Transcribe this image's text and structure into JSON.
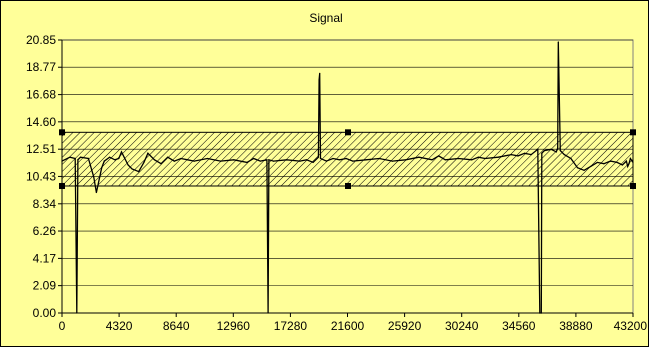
{
  "chart_data": {
    "type": "line",
    "title": "Signal",
    "xlabel": "",
    "ylabel": "",
    "xlim": [
      0,
      43200
    ],
    "ylim": [
      0,
      20.85
    ],
    "x_ticks": [
      "0",
      "4320",
      "8640",
      "12960",
      "17280",
      "21600",
      "25920",
      "30240",
      "34560",
      "38880",
      "43200"
    ],
    "y_ticks": [
      "0.00",
      "2.09",
      "4.17",
      "6.26",
      "8.34",
      "10.43",
      "12.51",
      "14.60",
      "16.68",
      "18.77",
      "20.85"
    ],
    "grid": "horizontal",
    "band": {
      "low": 9.7,
      "high": 13.8,
      "pattern": "diagonal-hatch"
    },
    "series": [
      {
        "color": "#000000",
        "x": [
          0,
          600,
          1000,
          1120,
          1200,
          1400,
          2000,
          2400,
          2600,
          3000,
          3200,
          3600,
          4000,
          4300,
          4500,
          5000,
          5300,
          5800,
          6200,
          6500,
          7000,
          7500,
          8000,
          8500,
          9000,
          9500,
          10000,
          11000,
          12000,
          13000,
          14000,
          14500,
          15000,
          15500,
          15590,
          15650,
          16000,
          17000,
          18000,
          18500,
          19000,
          19400,
          19450,
          19500,
          19560,
          20000,
          20500,
          21000,
          21500,
          22000,
          23000,
          24000,
          25000,
          26000,
          27000,
          28000,
          28500,
          29000,
          30000,
          31000,
          31500,
          32000,
          33000,
          34000,
          34500,
          35000,
          35500,
          36000,
          36150,
          36260,
          36300,
          36500,
          37000,
          37400,
          37500,
          37550,
          37700,
          38000,
          38500,
          39000,
          39500,
          40000,
          40500,
          41000,
          41500,
          42000,
          42400,
          42700,
          42800,
          42900,
          43000,
          43200
        ],
        "y": [
          11.6,
          11.9,
          11.8,
          0.0,
          11.7,
          11.9,
          11.8,
          10.4,
          9.2,
          11.1,
          11.6,
          11.9,
          11.7,
          11.8,
          12.3,
          11.3,
          11.0,
          10.8,
          11.5,
          12.2,
          11.7,
          11.4,
          11.9,
          11.6,
          11.8,
          11.7,
          11.6,
          11.8,
          11.6,
          11.7,
          11.5,
          11.8,
          11.6,
          11.7,
          0.0,
          11.7,
          11.6,
          11.7,
          11.6,
          11.7,
          11.5,
          11.9,
          17.8,
          18.3,
          11.8,
          11.6,
          11.8,
          11.7,
          11.8,
          11.6,
          11.7,
          11.8,
          11.6,
          11.7,
          11.9,
          11.7,
          12.0,
          11.7,
          11.8,
          11.7,
          11.9,
          11.8,
          11.9,
          12.1,
          12.0,
          12.2,
          12.1,
          12.5,
          0.0,
          0.0,
          12.2,
          12.4,
          12.5,
          12.3,
          12.6,
          20.7,
          12.4,
          12.1,
          11.8,
          11.1,
          10.9,
          11.2,
          11.5,
          11.4,
          11.6,
          11.5,
          11.3,
          11.6,
          11.2,
          11.4,
          11.8,
          11.5
        ]
      }
    ]
  }
}
